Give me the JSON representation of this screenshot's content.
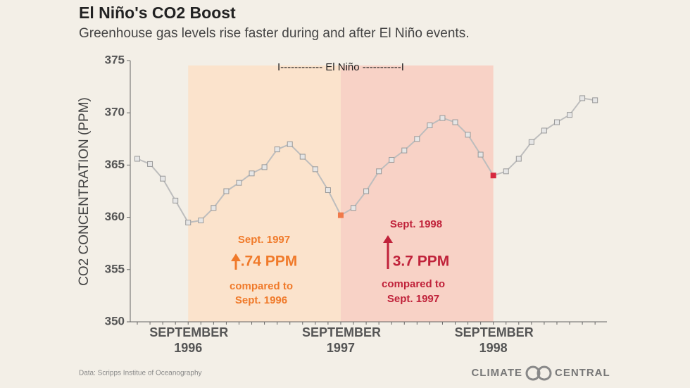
{
  "chart_data": {
    "type": "line",
    "title": "El Niño's CO2 Boost",
    "subtitle": "Greenhouse gas levels rise faster during and after El Niño events.",
    "y_label": "CO2 CONCENTRATION (PPM)",
    "categories": [
      null,
      null,
      null,
      null,
      "SEPTEMBER 1996",
      null,
      null,
      null,
      null,
      null,
      null,
      null,
      null,
      null,
      null,
      null,
      "SEPTEMBER 1997",
      null,
      null,
      null,
      null,
      null,
      null,
      null,
      null,
      null,
      null,
      null,
      "SEPTEMBER 1998",
      null,
      null,
      null,
      null,
      null,
      null,
      null,
      null
    ],
    "series": [
      {
        "name": "CO2",
        "color": "#bdbdbd",
        "marker_color": "#e6e6e6",
        "values": [
          365.6,
          365.1,
          363.7,
          361.6,
          359.5,
          359.7,
          360.9,
          362.5,
          363.3,
          364.2,
          364.8,
          366.5,
          367.0,
          365.8,
          364.6,
          362.6,
          360.2,
          360.9,
          362.5,
          364.4,
          365.5,
          366.4,
          367.5,
          368.8,
          369.5,
          369.1,
          367.9,
          366.0,
          364.0,
          364.4,
          365.6,
          367.2,
          368.3,
          369.1,
          369.8,
          371.4,
          371.2
        ]
      }
    ],
    "highlights": [
      {
        "index": 16,
        "color": "#f07a4a"
      },
      {
        "index": 28,
        "color": "#d6283f"
      }
    ],
    "spans": [
      {
        "from": 4,
        "to": 16,
        "color": "#fbe3cc"
      },
      {
        "from": 16,
        "to": 28,
        "color": "#f8d2c6"
      }
    ],
    "span_label": "I------------ El Niño -----------I",
    "ylim": [
      350,
      375
    ],
    "yticks": [
      350,
      355,
      360,
      365,
      370,
      375
    ],
    "annotations": [
      {
        "color": "#f07a2a",
        "lines": [
          "Sept. 1997",
          ".74 PPM",
          "compared to",
          "Sept. 1996"
        ]
      },
      {
        "color": "#c0223a",
        "lines": [
          "Sept. 1998",
          "3.7 PPM",
          "compared to",
          "Sept. 1997"
        ]
      }
    ],
    "source": "Data: Scripps Institue of Oceanography",
    "logo": [
      "CLIMATE",
      "CENTRAL"
    ]
  }
}
